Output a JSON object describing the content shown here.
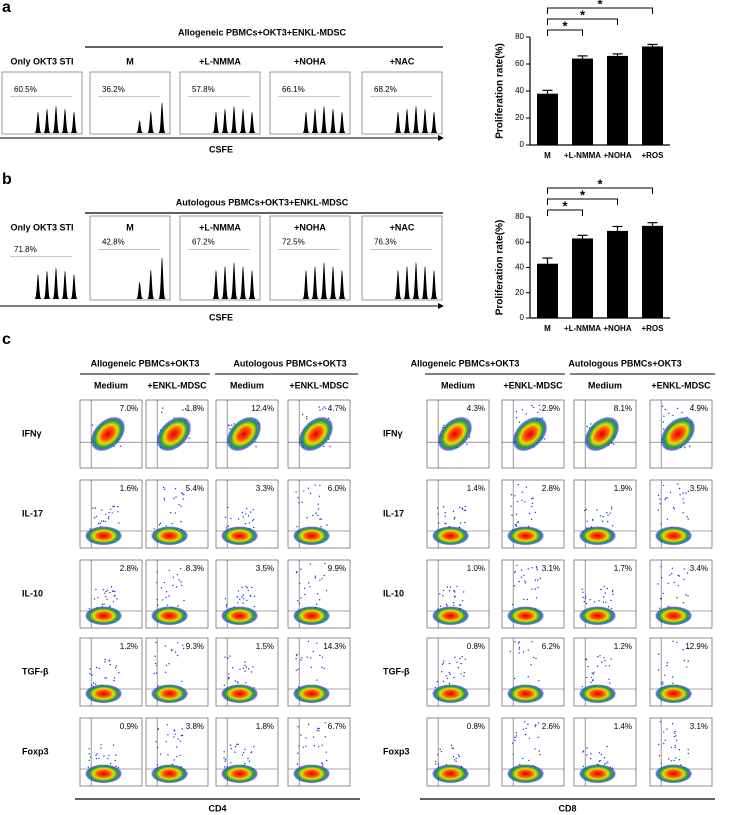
{
  "histogram_panels": [
    {
      "label": "a",
      "title": "Allogeneic PBMCs+OKT3+ENKL-MDSC",
      "control": "Only OKT3 STI",
      "conditions": [
        "M",
        "+L-NMMA",
        "+NOHA",
        "+NAC"
      ],
      "gate_percentages": [
        "60.5%",
        "36.2%",
        "57.8%",
        "66.1%",
        "68.2%"
      ],
      "x_label": "CSFE"
    },
    {
      "label": "b",
      "title": "Autologous PBMCs+OKT3+ENKL-MDSC",
      "control": "Only OKT3 STI",
      "conditions": [
        "M",
        "+L-NMMA",
        "+NOHA",
        "+NAC"
      ],
      "gate_percentages": [
        "71.8%",
        "42.8%",
        "67.2%",
        "72.5%",
        "76.3%"
      ],
      "x_label": "CSFE"
    }
  ],
  "chart_data": [
    {
      "type": "bar",
      "y_label": "Proliferation rate(%)",
      "categories": [
        "M",
        "+L-NMMA",
        "+NOHA",
        "+ROS"
      ],
      "values": [
        38,
        64,
        66,
        73
      ],
      "errors": [
        2.5,
        2,
        1.5,
        1.5
      ],
      "color": "#000000",
      "ylim": [
        0,
        80
      ],
      "yticks": [
        0,
        20,
        40,
        60,
        80
      ],
      "significance_labels": [
        "*",
        "*",
        "*"
      ]
    },
    {
      "type": "bar",
      "y_label": "Proliferation rate(%)",
      "categories": [
        "M",
        "+L-NMMA",
        "+NOHA",
        "+ROS"
      ],
      "values": [
        43,
        63,
        69,
        73
      ],
      "errors": [
        4.5,
        2.5,
        3.5,
        2.5
      ],
      "color": "#000000",
      "ylim": [
        0,
        80
      ],
      "yticks": [
        0,
        20,
        40,
        60,
        80
      ],
      "significance_labels": [
        "*",
        "*",
        "*"
      ]
    }
  ],
  "flow_panel": {
    "label": "c",
    "markers": [
      "IFNγ",
      "IL-17",
      "IL-10",
      "TGF-β",
      "Foxp3"
    ],
    "groups": [
      {
        "cell": "CD4",
        "columns": [
          {
            "title": "Allogeneic PBMCs+OKT3",
            "conditions": [
              "Medium",
              "+ENKL-MDSC"
            ]
          },
          {
            "title": "Autologous  PBMCs+OKT3",
            "conditions": [
              "Medium",
              "+ENKL-MDSC"
            ]
          }
        ],
        "percentages": [
          [
            "7.0%",
            "1.8%",
            "12.4%",
            "4.7%"
          ],
          [
            "1.6%",
            "5.4%",
            "3.3%",
            "6.0%"
          ],
          [
            "2.8%",
            "8.3%",
            "3.5%",
            "9.9%"
          ],
          [
            "1.2%",
            "9.3%",
            "1.5%",
            "14.3%"
          ],
          [
            "0.9%",
            "3.8%",
            "1.8%",
            "6.7%"
          ]
        ]
      },
      {
        "cell": "CD8",
        "columns": [
          {
            "title": "Allogeneic PBMCs+OKT3",
            "conditions": [
              "Medium",
              "+ENKL-MDSC"
            ]
          },
          {
            "title": "Autologous  PBMCs+OKT3",
            "conditions": [
              "Medium",
              "+ENKL-MDSC"
            ]
          }
        ],
        "percentages": [
          [
            "4.3%",
            "2.9%",
            "8.1%",
            "4.9%"
          ],
          [
            "1.4%",
            "2.8%",
            "1.9%",
            "3.5%"
          ],
          [
            "1.0%",
            "3.1%",
            "1.7%",
            "3.4%"
          ],
          [
            "0.8%",
            "6.2%",
            "1.2%",
            "12.9%"
          ],
          [
            "0.8%",
            "2.6%",
            "1.4%",
            "3.1%"
          ]
        ]
      }
    ]
  }
}
